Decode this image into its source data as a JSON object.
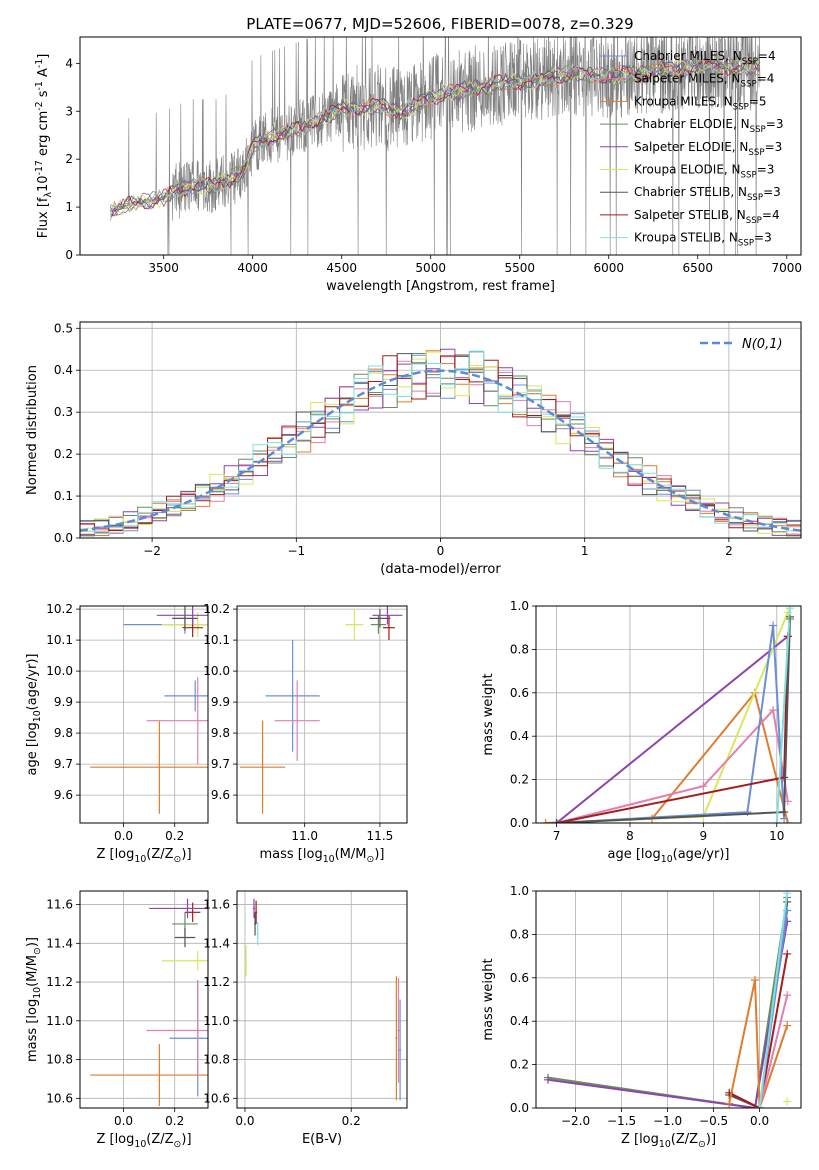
{
  "figure": {
    "title": "PLATE=0677, MJD=52606, FIBERID=0078, z=0.329"
  },
  "chart_data": [
    {
      "panel": "spectrum",
      "type": "line",
      "xlabel": "wavelength [Angstrom, rest frame]",
      "ylabel": "Flux [f_λ10^{-17} erg cm^{-2} s^{-1} A^{-1}]",
      "xlim": [
        3030,
        7080
      ],
      "ylim": [
        0,
        4.55
      ],
      "xticks": [
        3500,
        4000,
        4500,
        5000,
        5500,
        6000,
        6500,
        7000
      ],
      "yticks": [
        0,
        1,
        2,
        3,
        4
      ],
      "data_range_x": [
        3200,
        6850
      ],
      "continuum": {
        "x": [
          3200,
          3300,
          3500,
          3650,
          3800,
          3950,
          4000,
          4100,
          4300,
          4500,
          4700,
          4850,
          5000,
          5200,
          5400,
          5600,
          5800,
          6000,
          6200,
          6500,
          6850
        ],
        "y": [
          0.9,
          1.05,
          1.2,
          1.45,
          1.45,
          1.75,
          2.3,
          2.45,
          2.7,
          3.05,
          3.1,
          3.0,
          3.3,
          3.45,
          3.6,
          3.65,
          3.8,
          3.75,
          3.8,
          3.95,
          3.9
        ]
      },
      "legend_position": "top-right",
      "series": [
        {
          "label": "Chabrier MILES, N_{SSP}=4",
          "color": "#6a8fd8"
        },
        {
          "label": "Salpeter MILES, N_{SSP}=4",
          "color": "#e07fb0"
        },
        {
          "label": "Kroupa MILES, N_{SSP}=5",
          "color": "#e07c2e"
        },
        {
          "label": "Chabrier ELODIE, N_{SSP}=3",
          "color": "#6b8e5e"
        },
        {
          "label": "Salpeter ELODIE, N_{SSP}=3",
          "color": "#8e44ad"
        },
        {
          "label": "Kroupa ELODIE, N_{SSP}=3",
          "color": "#d9e85a"
        },
        {
          "label": "Chabrier STELIB, N_{SSP}=3",
          "color": "#555555"
        },
        {
          "label": "Salpeter STELIB, N_{SSP}=4",
          "color": "#a51c1c"
        },
        {
          "label": "Kroupa STELIB, N_{SSP}=3",
          "color": "#7fe0e0"
        }
      ],
      "data_color": "#808080"
    },
    {
      "panel": "residuals",
      "type": "line",
      "xlabel": "(data-model)/error",
      "ylabel": "Normed distribution",
      "xlim": [
        -2.5,
        2.5
      ],
      "ylim": [
        0,
        0.515
      ],
      "xticks": [
        -2,
        -1,
        0,
        1,
        2
      ],
      "yticks": [
        0.0,
        0.1,
        0.2,
        0.3,
        0.4,
        0.5
      ],
      "grid": true,
      "legend_position": "top-right",
      "reference": {
        "label": "N(0,1)",
        "color": "#5b8bd6",
        "style": "dashed"
      },
      "bins": {
        "start": -2.5,
        "width": 0.1,
        "count": 50
      },
      "series_colors": [
        "#6a8fd8",
        "#e07fb0",
        "#e07c2e",
        "#6b8e5e",
        "#8e44ad",
        "#d9e85a",
        "#555555",
        "#a51c1c",
        "#7fe0e0"
      ]
    },
    {
      "panel": "age-vs-Z",
      "type": "scatter",
      "xlabel": "Z [log_{10}(Z/Z_⊙)]",
      "ylabel": "age  [log_{10}(age/yr)]",
      "xlim": [
        -0.17,
        0.33
      ],
      "ylim": [
        9.51,
        10.21
      ],
      "xticks": [
        0.0,
        0.2
      ],
      "yticks": [
        9.6,
        9.7,
        9.8,
        9.9,
        10.0,
        10.1,
        10.2
      ],
      "grid": true,
      "points": [
        {
          "x": 0.24,
          "y": 10.15,
          "xerr": 0.24,
          "yerr": 0.03,
          "color": "#6a8fd8"
        },
        {
          "x": 0.14,
          "y": 9.69,
          "xerr": 0.27,
          "yerr": 0.15,
          "color": "#e07c2e"
        },
        {
          "x": 0.28,
          "y": 9.92,
          "xerr": 0.12,
          "yerr": 0.05,
          "color": "#6a8fd8"
        },
        {
          "x": 0.29,
          "y": 9.84,
          "xerr": 0.2,
          "yerr": 0.14,
          "color": "#e07fb0"
        },
        {
          "x": 0.29,
          "y": 10.15,
          "xerr": 0.14,
          "yerr": 0.04,
          "color": "#d9e85a"
        },
        {
          "x": 0.27,
          "y": 10.14,
          "xerr": 0.04,
          "yerr": 0.03,
          "color": "#a51c1c"
        },
        {
          "x": 0.24,
          "y": 10.17,
          "xerr": 0.05,
          "yerr": 0.04,
          "color": "#555555"
        },
        {
          "x": 0.27,
          "y": 10.18,
          "xerr": 0.14,
          "yerr": 0.03,
          "color": "#8e44ad"
        }
      ]
    },
    {
      "panel": "age-vs-mass",
      "type": "scatter",
      "xlabel": "mass [log_{10}(M/M_⊙)]",
      "ylabel": "",
      "xlim": [
        10.55,
        11.68
      ],
      "ylim": [
        9.51,
        10.21
      ],
      "xticks": [
        11.0,
        11.5
      ],
      "yticks": [
        9.6,
        9.7,
        9.8,
        9.9,
        10.0,
        10.1,
        10.2
      ],
      "grid": true,
      "points": [
        {
          "x": 10.72,
          "y": 9.69,
          "xerr": 0.15,
          "yerr": 0.15,
          "color": "#e07c2e"
        },
        {
          "x": 10.92,
          "y": 9.92,
          "xerr": 0.18,
          "yerr": 0.18,
          "color": "#6a8fd8"
        },
        {
          "x": 10.95,
          "y": 9.84,
          "xerr": 0.15,
          "yerr": 0.13,
          "color": "#e07fb0"
        },
        {
          "x": 11.33,
          "y": 10.15,
          "xerr": 0.06,
          "yerr": 0.05,
          "color": "#d9e85a"
        },
        {
          "x": 11.49,
          "y": 10.15,
          "xerr": 0.05,
          "yerr": 0.03,
          "color": "#6b8e5e"
        },
        {
          "x": 11.56,
          "y": 10.14,
          "xerr": 0.04,
          "yerr": 0.04,
          "color": "#a51c1c"
        },
        {
          "x": 11.5,
          "y": 10.17,
          "xerr": 0.07,
          "yerr": 0.03,
          "color": "#555555"
        },
        {
          "x": 11.55,
          "y": 10.18,
          "xerr": 0.1,
          "yerr": 0.03,
          "color": "#8e44ad"
        }
      ]
    },
    {
      "panel": "mass-weight-vs-age",
      "type": "line",
      "xlabel": "age  [log_{10}(age/yr)]",
      "ylabel": "mass weight",
      "xlim": [
        6.72,
        10.33
      ],
      "ylim": [
        0,
        1.0
      ],
      "xticks": [
        7,
        8,
        9,
        10
      ],
      "yticks": [
        0.0,
        0.2,
        0.4,
        0.6,
        0.8,
        1.0
      ],
      "grid": true,
      "series": [
        {
          "color": "#8e44ad",
          "x": [
            7.0,
            10.15
          ],
          "y": [
            0.0,
            0.86
          ]
        },
        {
          "color": "#e07c2e",
          "x": [
            6.85,
            8.3,
            9.7,
            10.15
          ],
          "y": [
            0.0,
            0.02,
            0.6,
            0.0
          ]
        },
        {
          "color": "#d9e85a",
          "x": [
            7.0,
            9.0,
            10.15
          ],
          "y": [
            0.0,
            0.03,
            0.97
          ]
        },
        {
          "color": "#e07fb0",
          "x": [
            7.0,
            9.0,
            9.95,
            10.15
          ],
          "y": [
            0.0,
            0.17,
            0.52,
            0.1
          ]
        },
        {
          "color": "#6a8fd8",
          "x": [
            7.0,
            9.6,
            9.95,
            10.1
          ],
          "y": [
            0.0,
            0.05,
            0.91,
            0.02
          ]
        },
        {
          "color": "#a51c1c",
          "x": [
            7.0,
            10.1,
            10.15
          ],
          "y": [
            0.0,
            0.21,
            0.86
          ]
        },
        {
          "color": "#555555",
          "x": [
            7.0,
            10.1,
            10.18
          ],
          "y": [
            0.0,
            0.05,
            0.95
          ]
        },
        {
          "color": "#7fe0e0",
          "x": [
            10.0,
            10.18
          ],
          "y": [
            0.0,
            0.99
          ]
        },
        {
          "color": "#6b8e5e",
          "x": [
            10.18
          ],
          "y": [
            0.94
          ]
        }
      ]
    },
    {
      "panel": "mass-vs-Z",
      "type": "scatter",
      "xlabel": "Z [log_{10}(Z/Z_⊙)]",
      "ylabel": "mass [log_{10}(M/M_⊙)]",
      "xlim": [
        -0.17,
        0.33
      ],
      "ylim": [
        10.55,
        11.67
      ],
      "xticks": [
        0.0,
        0.2
      ],
      "yticks": [
        10.6,
        10.8,
        11.0,
        11.2,
        11.4,
        11.6
      ],
      "grid": true,
      "points": [
        {
          "x": 0.14,
          "y": 10.72,
          "xerr": 0.27,
          "yerr": 0.16,
          "color": "#e07c2e"
        },
        {
          "x": 0.29,
          "y": 10.91,
          "xerr": 0.11,
          "yerr": 0.3,
          "color": "#6a8fd8"
        },
        {
          "x": 0.29,
          "y": 10.95,
          "xerr": 0.2,
          "yerr": 0.25,
          "color": "#e07fb0"
        },
        {
          "x": 0.29,
          "y": 11.31,
          "xerr": 0.14,
          "yerr": 0.05,
          "color": "#d9e85a"
        },
        {
          "x": 0.24,
          "y": 11.5,
          "xerr": 0.05,
          "yerr": 0.06,
          "color": "#6b8e5e"
        },
        {
          "x": 0.27,
          "y": 11.56,
          "xerr": 0.03,
          "yerr": 0.05,
          "color": "#a51c1c"
        },
        {
          "x": 0.25,
          "y": 11.58,
          "xerr": 0.15,
          "yerr": 0.05,
          "color": "#8e44ad"
        },
        {
          "x": 0.24,
          "y": 11.43,
          "xerr": 0.04,
          "yerr": 0.05,
          "color": "#555555"
        }
      ]
    },
    {
      "panel": "mass-vs-EBV",
      "type": "scatter",
      "xlabel": "E(B-V)",
      "ylabel": "",
      "xlim": [
        -0.015,
        0.305
      ],
      "ylim": [
        10.55,
        11.67
      ],
      "xticks": [
        0.0,
        0.2
      ],
      "yticks": [
        10.6,
        10.8,
        11.0,
        11.2,
        11.4,
        11.6
      ],
      "grid": true,
      "points": [
        {
          "x": 0.285,
          "y": 10.91,
          "xerr": 0.002,
          "yerr": 0.32,
          "color": "#e07c2e"
        },
        {
          "x": 0.289,
          "y": 10.95,
          "xerr": 0.002,
          "yerr": 0.27,
          "color": "#e07fb0"
        },
        {
          "x": 0.292,
          "y": 10.85,
          "xerr": 0.002,
          "yerr": 0.26,
          "color": "#6a8fd8"
        },
        {
          "x": 0.002,
          "y": 11.31,
          "xerr": 0.002,
          "yerr": 0.08,
          "color": "#d9e85a"
        },
        {
          "x": 0.021,
          "y": 11.56,
          "xerr": 0.002,
          "yerr": 0.06,
          "color": "#a51c1c"
        },
        {
          "x": 0.017,
          "y": 11.58,
          "xerr": 0.002,
          "yerr": 0.05,
          "color": "#8e44ad"
        },
        {
          "x": 0.024,
          "y": 11.45,
          "xerr": 0.002,
          "yerr": 0.06,
          "color": "#7fe0e0"
        },
        {
          "x": 0.019,
          "y": 11.5,
          "xerr": 0.002,
          "yerr": 0.06,
          "color": "#555555"
        }
      ]
    },
    {
      "panel": "mass-weight-vs-Z",
      "type": "line",
      "xlabel": "Z [log_{10}(Z/Z_⊙)]",
      "ylabel": "mass weight",
      "xlim": [
        -2.43,
        0.45
      ],
      "ylim": [
        0,
        1.0
      ],
      "xticks": [
        -2.0,
        -1.5,
        -1.0,
        -0.5,
        0.0
      ],
      "yticks": [
        0.0,
        0.2,
        0.4,
        0.6,
        0.8,
        1.0
      ],
      "grid": true,
      "series": [
        {
          "color": "#6b8e5e",
          "x": [
            -2.3,
            -0.05,
            0.3
          ],
          "y": [
            0.14,
            0.0,
            0.97
          ]
        },
        {
          "color": "#8e44ad",
          "x": [
            -2.3,
            -0.05,
            0.3
          ],
          "y": [
            0.13,
            0.0,
            0.86
          ]
        },
        {
          "color": "#555555",
          "x": [
            -0.33,
            0.0,
            0.3
          ],
          "y": [
            0.06,
            0.0,
            0.95
          ]
        },
        {
          "color": "#a51c1c",
          "x": [
            -0.33,
            0.0,
            0.3
          ],
          "y": [
            0.07,
            0.0,
            0.71
          ]
        },
        {
          "color": "#e07c2e",
          "x": [
            -0.33,
            -0.05,
            0.0,
            0.3
          ],
          "y": [
            0.02,
            0.59,
            0.0,
            0.38
          ]
        },
        {
          "color": "#e07fb0",
          "x": [
            0.0,
            0.3
          ],
          "y": [
            0.0,
            0.52
          ]
        },
        {
          "color": "#6a8fd8",
          "x": [
            0.0,
            0.3
          ],
          "y": [
            0.0,
            0.91
          ]
        },
        {
          "color": "#7fe0e0",
          "x": [
            0.0,
            0.3
          ],
          "y": [
            0.0,
            0.99
          ]
        },
        {
          "color": "#d9e85a",
          "x": [
            0.3
          ],
          "y": [
            0.03
          ]
        }
      ]
    }
  ]
}
